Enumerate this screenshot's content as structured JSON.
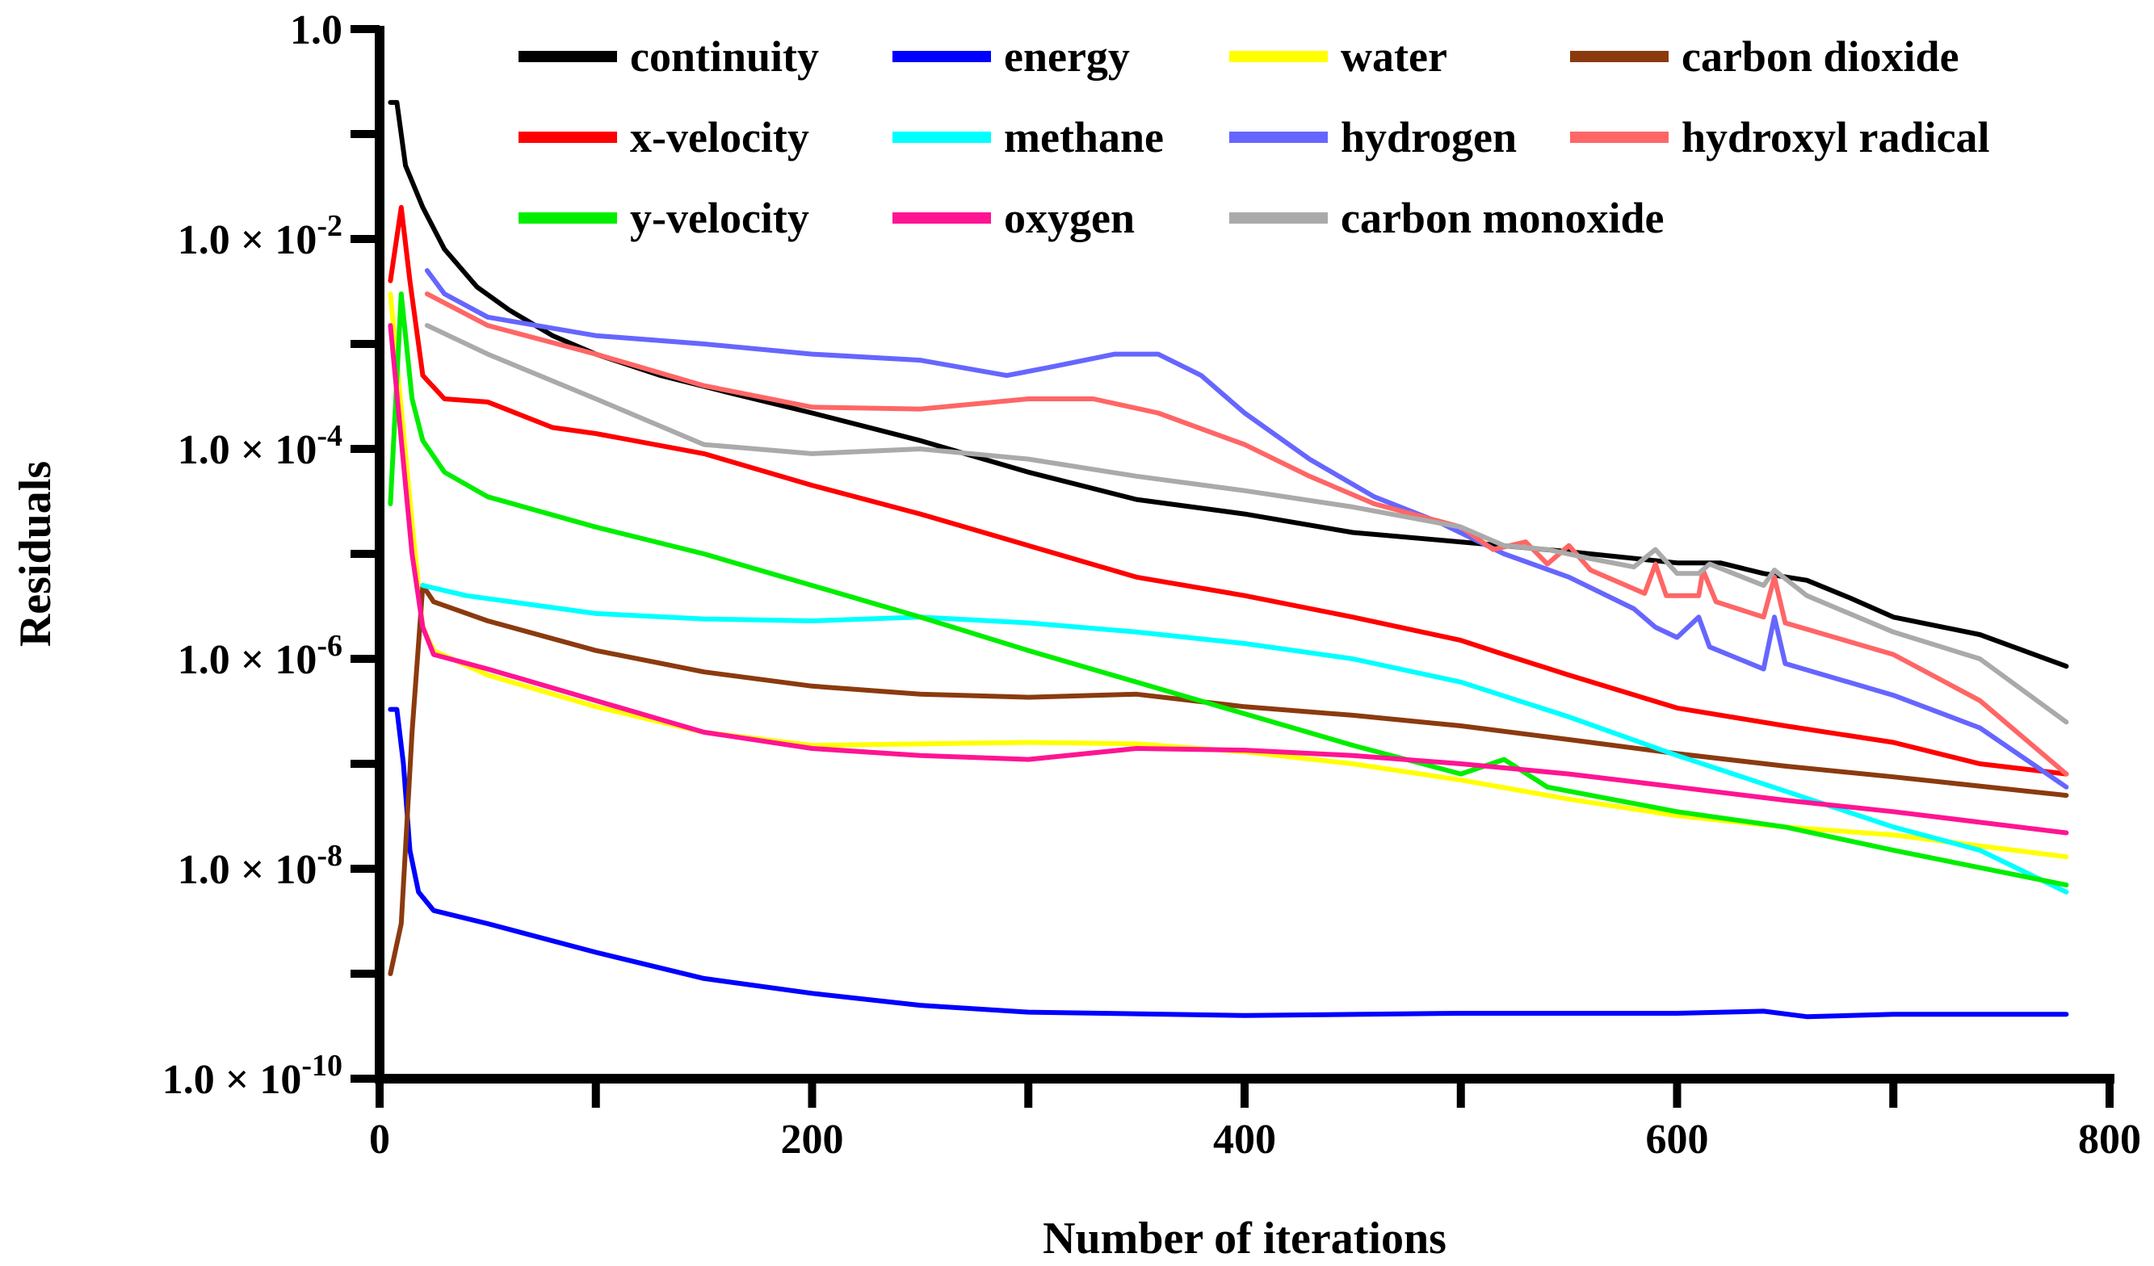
{
  "chart_data": {
    "type": "line",
    "y_scale": "log",
    "title": "",
    "xlabel": "Number of iterations",
    "ylabel": "Residuals",
    "xlim": [
      0,
      800
    ],
    "ylim": [
      1e-10,
      1
    ],
    "x_major_ticks": [
      0,
      200,
      400,
      600,
      800
    ],
    "x_minor_ticks": [
      100,
      300,
      500,
      700
    ],
    "x_tick_labels": [
      "0",
      "200",
      "400",
      "600",
      "800"
    ],
    "y_ticks": [
      {
        "value": 1,
        "mantissa": "1.0",
        "times": "",
        "exponent": ""
      },
      {
        "value": 0.01,
        "mantissa": "1.0",
        "times": " × 10",
        "exponent": "-2"
      },
      {
        "value": 0.0001,
        "mantissa": "1.0",
        "times": " × 10",
        "exponent": "-4"
      },
      {
        "value": 1e-06,
        "mantissa": "1.0",
        "times": " × 10",
        "exponent": "-6"
      },
      {
        "value": 1e-08,
        "mantissa": "1.0",
        "times": " × 10",
        "exponent": "-8"
      },
      {
        "value": 1e-10,
        "mantissa": "1.0",
        "times": " × 10",
        "exponent": "-10"
      }
    ],
    "legend_position": "top",
    "series": [
      {
        "name": "continuity",
        "color": "#000000",
        "points": [
          [
            5,
            0.2
          ],
          [
            8,
            0.2
          ],
          [
            12,
            0.05
          ],
          [
            20,
            0.02
          ],
          [
            30,
            0.008
          ],
          [
            45,
            0.0035
          ],
          [
            60,
            0.0021
          ],
          [
            80,
            0.0012
          ],
          [
            100,
            0.0008
          ],
          [
            130,
            0.0005
          ],
          [
            160,
            0.00035
          ],
          [
            200,
            0.00022
          ],
          [
            250,
            0.00012
          ],
          [
            300,
            6e-05
          ],
          [
            350,
            3.3e-05
          ],
          [
            400,
            2.4e-05
          ],
          [
            450,
            1.6e-05
          ],
          [
            500,
            1.3e-05
          ],
          [
            550,
            1.05e-05
          ],
          [
            600,
            8.2e-06
          ],
          [
            620,
            8.2e-06
          ],
          [
            640,
            6.5e-06
          ],
          [
            660,
            5.6e-06
          ],
          [
            680,
            3.8e-06
          ],
          [
            700,
            2.5e-06
          ],
          [
            740,
            1.7e-06
          ],
          [
            780,
            8.5e-07
          ]
        ]
      },
      {
        "name": "energy",
        "color": "#0000ff",
        "points": [
          [
            5,
            3.3e-07
          ],
          [
            8,
            3.3e-07
          ],
          [
            11,
            1e-07
          ],
          [
            14,
            1.5e-08
          ],
          [
            18,
            6e-09
          ],
          [
            25,
            4e-09
          ],
          [
            50,
            3e-09
          ],
          [
            100,
            1.6e-09
          ],
          [
            150,
            9e-10
          ],
          [
            200,
            6.5e-10
          ],
          [
            250,
            5e-10
          ],
          [
            300,
            4.3e-10
          ],
          [
            400,
            4e-10
          ],
          [
            500,
            4.2e-10
          ],
          [
            600,
            4.2e-10
          ],
          [
            640,
            4.4e-10
          ],
          [
            660,
            3.9e-10
          ],
          [
            700,
            4.1e-10
          ],
          [
            780,
            4.1e-10
          ]
        ]
      },
      {
        "name": "water",
        "color": "#ffff00",
        "points": [
          [
            5,
            0.003
          ],
          [
            15,
            2e-05
          ],
          [
            20,
            2e-06
          ],
          [
            25,
            1.2e-06
          ],
          [
            50,
            7e-07
          ],
          [
            100,
            3.5e-07
          ],
          [
            150,
            2e-07
          ],
          [
            200,
            1.5e-07
          ],
          [
            300,
            1.6e-07
          ],
          [
            350,
            1.55e-07
          ],
          [
            400,
            1.3e-07
          ],
          [
            450,
            1e-07
          ],
          [
            500,
            7e-08
          ],
          [
            550,
            4.6e-08
          ],
          [
            600,
            3.2e-08
          ],
          [
            650,
            2.5e-08
          ],
          [
            700,
            2.1e-08
          ],
          [
            780,
            1.3e-08
          ]
        ]
      },
      {
        "name": "carbon dioxide",
        "color": "#8b3a0f",
        "points": [
          [
            5,
            1e-09
          ],
          [
            10,
            3e-09
          ],
          [
            15,
            2e-07
          ],
          [
            20,
            5e-06
          ],
          [
            25,
            3.5e-06
          ],
          [
            50,
            2.3e-06
          ],
          [
            100,
            1.2e-06
          ],
          [
            150,
            7.5e-07
          ],
          [
            200,
            5.5e-07
          ],
          [
            250,
            4.6e-07
          ],
          [
            300,
            4.3e-07
          ],
          [
            350,
            4.6e-07
          ],
          [
            400,
            3.5e-07
          ],
          [
            450,
            2.9e-07
          ],
          [
            500,
            2.3e-07
          ],
          [
            550,
            1.7e-07
          ],
          [
            600,
            1.25e-07
          ],
          [
            650,
            9.5e-08
          ],
          [
            700,
            7.5e-08
          ],
          [
            780,
            5e-08
          ]
        ]
      },
      {
        "name": "x-velocity",
        "color": "#ff0000",
        "points": [
          [
            5,
            0.004
          ],
          [
            10,
            0.02
          ],
          [
            14,
            0.004
          ],
          [
            20,
            0.0005
          ],
          [
            30,
            0.0003
          ],
          [
            50,
            0.00028
          ],
          [
            80,
            0.00016
          ],
          [
            100,
            0.00014
          ],
          [
            150,
            9e-05
          ],
          [
            200,
            4.5e-05
          ],
          [
            250,
            2.4e-05
          ],
          [
            300,
            1.2e-05
          ],
          [
            350,
            6e-06
          ],
          [
            400,
            4e-06
          ],
          [
            450,
            2.5e-06
          ],
          [
            500,
            1.5e-06
          ],
          [
            520,
            1.1e-06
          ],
          [
            550,
            7e-07
          ],
          [
            600,
            3.4e-07
          ],
          [
            650,
            2.3e-07
          ],
          [
            700,
            1.6e-07
          ],
          [
            740,
            1e-07
          ],
          [
            780,
            8e-08
          ]
        ]
      },
      {
        "name": "methane",
        "color": "#00ffff",
        "points": [
          [
            20,
            5e-06
          ],
          [
            40,
            4e-06
          ],
          [
            100,
            2.7e-06
          ],
          [
            150,
            2.4e-06
          ],
          [
            200,
            2.3e-06
          ],
          [
            250,
            2.5e-06
          ],
          [
            300,
            2.2e-06
          ],
          [
            350,
            1.8e-06
          ],
          [
            400,
            1.4e-06
          ],
          [
            450,
            1e-06
          ],
          [
            500,
            6e-07
          ],
          [
            550,
            2.8e-07
          ],
          [
            600,
            1.2e-07
          ],
          [
            650,
            5.5e-08
          ],
          [
            700,
            2.5e-08
          ],
          [
            740,
            1.5e-08
          ],
          [
            780,
            6e-09
          ]
        ]
      },
      {
        "name": "hydrogen",
        "color": "#6666ff",
        "points": [
          [
            22,
            0.005
          ],
          [
            30,
            0.003
          ],
          [
            50,
            0.0018
          ],
          [
            100,
            0.0012
          ],
          [
            150,
            0.001
          ],
          [
            200,
            0.0008
          ],
          [
            250,
            0.0007
          ],
          [
            290,
            0.0005
          ],
          [
            310,
            0.0006
          ],
          [
            340,
            0.0008
          ],
          [
            360,
            0.0008
          ],
          [
            380,
            0.0005
          ],
          [
            400,
            0.00022
          ],
          [
            430,
            8e-05
          ],
          [
            460,
            3.5e-05
          ],
          [
            490,
            2e-05
          ],
          [
            520,
            1e-05
          ],
          [
            550,
            6e-06
          ],
          [
            580,
            3e-06
          ],
          [
            590,
            2e-06
          ],
          [
            600,
            1.6e-06
          ],
          [
            610,
            2.5e-06
          ],
          [
            615,
            1.3e-06
          ],
          [
            640,
            8e-07
          ],
          [
            645,
            2.5e-06
          ],
          [
            650,
            9e-07
          ],
          [
            700,
            4.5e-07
          ],
          [
            740,
            2.2e-07
          ],
          [
            780,
            6e-08
          ]
        ]
      },
      {
        "name": "hydroxyl radical",
        "color": "#ff6666",
        "points": [
          [
            22,
            0.003
          ],
          [
            50,
            0.0015
          ],
          [
            100,
            0.0008
          ],
          [
            150,
            0.0004
          ],
          [
            200,
            0.00025
          ],
          [
            250,
            0.00024
          ],
          [
            300,
            0.0003
          ],
          [
            330,
            0.0003
          ],
          [
            360,
            0.00022
          ],
          [
            400,
            0.00011
          ],
          [
            430,
            5.5e-05
          ],
          [
            460,
            3e-05
          ],
          [
            500,
            1.8e-05
          ],
          [
            515,
            1.1e-05
          ],
          [
            530,
            1.3e-05
          ],
          [
            540,
            8e-06
          ],
          [
            550,
            1.2e-05
          ],
          [
            560,
            7e-06
          ],
          [
            585,
            4.2e-06
          ],
          [
            590,
            8e-06
          ],
          [
            595,
            4e-06
          ],
          [
            610,
            4e-06
          ],
          [
            612,
            7e-06
          ],
          [
            618,
            3.5e-06
          ],
          [
            640,
            2.5e-06
          ],
          [
            645,
            6e-06
          ],
          [
            650,
            2.2e-06
          ],
          [
            700,
            1.1e-06
          ],
          [
            740,
            4e-07
          ],
          [
            780,
            8e-08
          ]
        ]
      },
      {
        "name": "y-velocity",
        "color": "#00ee00",
        "points": [
          [
            5,
            3e-05
          ],
          [
            10,
            0.003
          ],
          [
            15,
            0.0003
          ],
          [
            20,
            0.00012
          ],
          [
            30,
            6e-05
          ],
          [
            50,
            3.5e-05
          ],
          [
            100,
            1.8e-05
          ],
          [
            150,
            1e-05
          ],
          [
            200,
            5e-06
          ],
          [
            250,
            2.5e-06
          ],
          [
            300,
            1.2e-06
          ],
          [
            350,
            6e-07
          ],
          [
            400,
            3e-07
          ],
          [
            450,
            1.5e-07
          ],
          [
            500,
            8e-08
          ],
          [
            520,
            1.1e-07
          ],
          [
            540,
            6e-08
          ],
          [
            600,
            3.5e-08
          ],
          [
            650,
            2.5e-08
          ],
          [
            700,
            1.5e-08
          ],
          [
            780,
            7e-09
          ]
        ]
      },
      {
        "name": "oxygen",
        "color": "#ff1493",
        "points": [
          [
            5,
            0.0015
          ],
          [
            15,
            1e-05
          ],
          [
            20,
            2e-06
          ],
          [
            25,
            1.1e-06
          ],
          [
            50,
            8e-07
          ],
          [
            100,
            4e-07
          ],
          [
            150,
            2e-07
          ],
          [
            200,
            1.4e-07
          ],
          [
            250,
            1.2e-07
          ],
          [
            300,
            1.1e-07
          ],
          [
            350,
            1.4e-07
          ],
          [
            400,
            1.35e-07
          ],
          [
            450,
            1.2e-07
          ],
          [
            500,
            1e-07
          ],
          [
            550,
            8e-08
          ],
          [
            600,
            6e-08
          ],
          [
            650,
            4.5e-08
          ],
          [
            700,
            3.5e-08
          ],
          [
            780,
            2.2e-08
          ]
        ]
      },
      {
        "name": "carbon monoxide",
        "color": "#aaaaaa",
        "points": [
          [
            22,
            0.0015
          ],
          [
            50,
            0.0008
          ],
          [
            100,
            0.0003
          ],
          [
            150,
            0.00011
          ],
          [
            200,
            9e-05
          ],
          [
            250,
            0.0001
          ],
          [
            300,
            8e-05
          ],
          [
            350,
            5.5e-05
          ],
          [
            400,
            4e-05
          ],
          [
            450,
            2.8e-05
          ],
          [
            500,
            1.8e-05
          ],
          [
            520,
            1.2e-05
          ],
          [
            540,
            1.1e-05
          ],
          [
            560,
            9e-06
          ],
          [
            580,
            7.5e-06
          ],
          [
            590,
            1.1e-05
          ],
          [
            600,
            6.5e-06
          ],
          [
            610,
            6.5e-06
          ],
          [
            615,
            8e-06
          ],
          [
            640,
            5e-06
          ],
          [
            645,
            7e-06
          ],
          [
            660,
            4e-06
          ],
          [
            700,
            1.8e-06
          ],
          [
            740,
            1e-06
          ],
          [
            780,
            2.5e-07
          ]
        ]
      }
    ]
  }
}
